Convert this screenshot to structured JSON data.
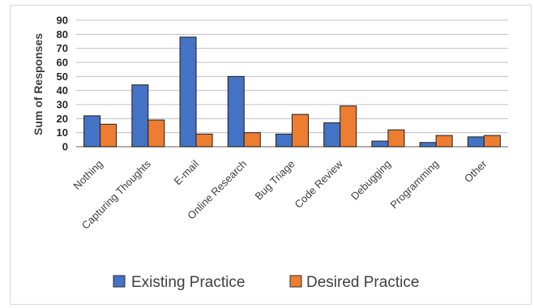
{
  "chart_data": {
    "type": "bar",
    "title": "",
    "xlabel": "",
    "ylabel": "Sum of Responses",
    "ylim": [
      0,
      90
    ],
    "ytick_step": 10,
    "grid": true,
    "legend_position": "bottom",
    "categories": [
      "Nothing",
      "Capturing Thoughts",
      "E-mail",
      "Online Research",
      "Bug Triage",
      "Code Review",
      "Debugging",
      "Programming",
      "Other"
    ],
    "series": [
      {
        "name": "Existing Practice",
        "color": "#4472c4",
        "values": [
          22,
          44,
          78,
          50,
          9,
          17,
          4,
          3,
          7
        ]
      },
      {
        "name": "Desired Practice",
        "color": "#ed7d31",
        "values": [
          16,
          19,
          9,
          10,
          23,
          29,
          12,
          8,
          8
        ]
      }
    ]
  }
}
